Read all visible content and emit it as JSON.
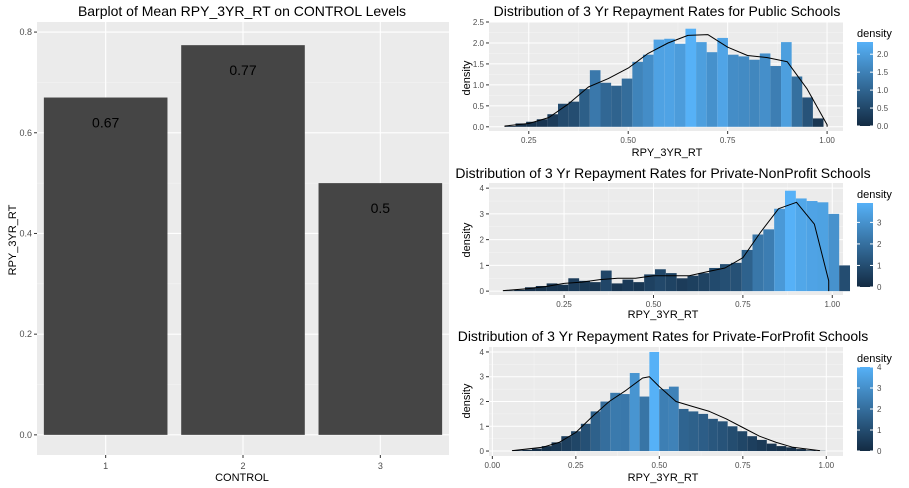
{
  "colors": {
    "panel_bg": "#ebebeb",
    "grid_major": "#ffffff",
    "bar_fill": "#454545",
    "density_low": "#132b43",
    "density_high": "#56b1f7",
    "density_line": "#000000",
    "text": "#000000",
    "tick_text": "#4d4d4d"
  },
  "chart_data": [
    {
      "type": "bar",
      "title": "Barplot of Mean RPY_3YR_RT on CONTROL Levels",
      "xlabel": "CONTROL",
      "ylabel": "RPY_3YR_RT",
      "categories": [
        "1",
        "2",
        "3"
      ],
      "values": [
        0.67,
        0.774,
        0.5
      ],
      "data_labels": [
        "0.67",
        "0.77",
        "0.5"
      ],
      "yticks": [
        0.0,
        0.2,
        0.4,
        0.6,
        0.8
      ],
      "ytick_labels": [
        "0.0",
        "0.2",
        "0.4",
        "0.6",
        "0.8"
      ],
      "ylim": [
        -0.04,
        0.82
      ],
      "grid": true
    },
    {
      "type": "histogram",
      "title": "Distribution of 3 Yr Repayment Rates for Public Schools",
      "xlabel": "RPY_3YR_RT",
      "ylabel": "density",
      "legend_title": "density",
      "legend_ticks": [
        "0.0",
        "0.5",
        "1.0",
        "1.5",
        "2.0"
      ],
      "legend_tick_values": [
        0,
        0.5,
        1.0,
        1.5,
        2.0
      ],
      "legend_max": 2.34,
      "legend_position": "right",
      "bin_start": 0.19,
      "bin_width": 0.0267,
      "values": [
        0.02,
        0.08,
        0.12,
        0.18,
        0.3,
        0.55,
        0.6,
        0.9,
        1.35,
        1.05,
        0.98,
        1.15,
        1.55,
        1.72,
        2.08,
        2.1,
        1.98,
        2.34,
        2.02,
        1.78,
        2.12,
        1.72,
        1.68,
        1.6,
        1.75,
        1.45,
        2.02,
        1.2,
        0.7,
        0.2,
        0.0
      ],
      "density_curve_x": [
        0.19,
        0.25,
        0.3,
        0.35,
        0.4,
        0.45,
        0.5,
        0.55,
        0.6,
        0.65,
        0.7,
        0.75,
        0.8,
        0.85,
        0.9,
        0.95,
        1.0
      ],
      "density_curve_y": [
        0.02,
        0.08,
        0.22,
        0.55,
        0.95,
        1.15,
        1.4,
        1.75,
        2.0,
        2.18,
        2.2,
        1.9,
        1.7,
        1.65,
        1.55,
        0.9,
        0.05
      ],
      "xticks": [
        0.25,
        0.5,
        0.75,
        1.0
      ],
      "xtick_labels": [
        "0.25",
        "0.50",
        "0.75",
        "1.00"
      ],
      "yticks": [
        0,
        0.5,
        1.0,
        1.5,
        2.0,
        2.5
      ],
      "ytick_labels": [
        "0.0",
        "0.5",
        "1.0",
        "1.5",
        "2.0",
        "2.5"
      ],
      "xlim": [
        0.15,
        1.04
      ],
      "ylim": [
        -0.1,
        2.5
      ],
      "grid": true
    },
    {
      "type": "histogram",
      "title": "Distribution of 3 Yr Repayment Rates for Private-NonProfit Schools",
      "xlabel": "RPY_3YR_RT",
      "ylabel": "density",
      "legend_title": "density",
      "legend_ticks": [
        "0",
        "1",
        "2",
        "3"
      ],
      "legend_tick_values": [
        0,
        1,
        2,
        3
      ],
      "legend_max": 3.9,
      "legend_position": "right",
      "bin_start": 0.08,
      "bin_width": 0.0303,
      "values": [
        0.02,
        0.05,
        0.15,
        0.2,
        0.3,
        0.25,
        0.5,
        0.4,
        0.35,
        0.8,
        0.3,
        0.45,
        0.35,
        0.65,
        0.85,
        0.7,
        0.5,
        0.6,
        0.7,
        0.9,
        1.05,
        1.1,
        1.6,
        2.2,
        2.4,
        3.2,
        3.9,
        3.6,
        3.5,
        3.45,
        3.0,
        1.0
      ],
      "density_curve_x": [
        0.08,
        0.15,
        0.2,
        0.25,
        0.3,
        0.35,
        0.4,
        0.45,
        0.5,
        0.55,
        0.6,
        0.65,
        0.7,
        0.75,
        0.8,
        0.85,
        0.9,
        0.95,
        0.99
      ],
      "density_curve_y": [
        0.02,
        0.1,
        0.18,
        0.3,
        0.35,
        0.45,
        0.5,
        0.5,
        0.6,
        0.6,
        0.6,
        0.75,
        0.9,
        1.3,
        2.3,
        3.2,
        3.45,
        2.6,
        0.4
      ],
      "xticks": [
        0.25,
        0.5,
        0.75,
        1.0
      ],
      "xtick_labels": [
        "0.25",
        "0.50",
        "0.75",
        "1.00"
      ],
      "yticks": [
        0,
        1,
        2,
        3,
        4
      ],
      "ytick_labels": [
        "0",
        "1",
        "2",
        "3",
        "4"
      ],
      "xlim": [
        0.04,
        1.03
      ],
      "ylim": [
        -0.15,
        4.2
      ],
      "grid": true
    },
    {
      "type": "histogram",
      "title": "Distribution of 3 Yr Repayment Rates for Private-ForProfit Schools",
      "xlabel": "RPY_3YR_RT",
      "ylabel": "density",
      "legend_title": "density",
      "legend_ticks": [
        "0",
        "1",
        "2",
        "3",
        "4"
      ],
      "legend_tick_values": [
        0,
        1,
        2,
        3,
        4
      ],
      "legend_max": 4.0,
      "legend_position": "right",
      "bin_start": 0.06,
      "bin_width": 0.0293,
      "values": [
        0.03,
        0.05,
        0.1,
        0.2,
        0.35,
        0.6,
        0.8,
        1.1,
        1.6,
        2.0,
        2.35,
        2.3,
        3.15,
        2.2,
        4.0,
        2.5,
        2.6,
        1.7,
        1.6,
        1.5,
        1.3,
        1.2,
        1.0,
        0.8,
        0.6,
        0.45,
        0.3,
        0.2,
        0.15,
        0.08,
        0.03,
        0.01
      ],
      "density_curve_x": [
        0.06,
        0.15,
        0.2,
        0.25,
        0.3,
        0.35,
        0.4,
        0.45,
        0.47,
        0.5,
        0.55,
        0.6,
        0.65,
        0.7,
        0.75,
        0.8,
        0.85,
        0.9,
        0.98
      ],
      "density_curve_y": [
        0.02,
        0.15,
        0.35,
        0.75,
        1.4,
        2.0,
        2.45,
        2.95,
        3.0,
        2.6,
        2.0,
        1.8,
        1.6,
        1.3,
        0.95,
        0.6,
        0.35,
        0.15,
        0.02
      ],
      "xticks": [
        0.0,
        0.25,
        0.5,
        0.75,
        1.0
      ],
      "xtick_labels": [
        "0.00",
        "0.25",
        "0.50",
        "0.75",
        "1.00"
      ],
      "yticks": [
        0,
        1,
        2,
        3,
        4
      ],
      "ytick_labels": [
        "0",
        "1",
        "2",
        "3",
        "4"
      ],
      "xlim": [
        -0.01,
        1.05
      ],
      "ylim": [
        -0.2,
        4.2
      ],
      "grid": true
    }
  ]
}
